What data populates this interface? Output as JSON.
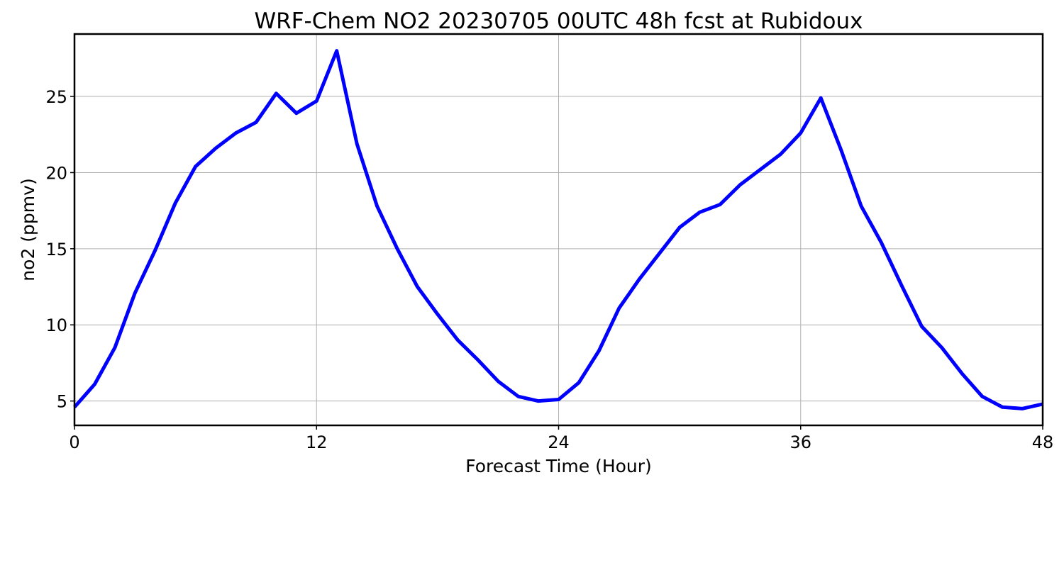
{
  "chart_data": {
    "type": "line",
    "title": "WRF-Chem NO2  20230705 00UTC 48h fcst at Rubidoux",
    "xlabel": "Forecast Time (Hour)",
    "ylabel": "no2  (ppmv)",
    "xlim": [
      0,
      48
    ],
    "ylim": [
      3.4,
      29.1
    ],
    "xticks": [
      0,
      12,
      24,
      36,
      48
    ],
    "yticks": [
      5,
      10,
      15,
      20,
      25
    ],
    "grid": true,
    "series": [
      {
        "color": "#0000ff",
        "x": [
          0,
          1,
          2,
          3,
          4,
          5,
          6,
          7,
          8,
          9,
          10,
          11,
          12,
          13,
          14,
          15,
          16,
          17,
          18,
          19,
          20,
          21,
          22,
          23,
          24,
          25,
          26,
          27,
          28,
          29,
          30,
          31,
          32,
          33,
          34,
          35,
          36,
          37,
          38,
          39,
          40,
          41,
          42,
          43,
          44,
          45,
          46,
          47,
          48
        ],
        "y": [
          4.6,
          6.1,
          8.5,
          12.1,
          14.9,
          18.0,
          20.4,
          21.6,
          22.6,
          23.3,
          25.2,
          23.9,
          24.7,
          28.0,
          21.9,
          17.8,
          15.0,
          12.5,
          10.7,
          9.0,
          7.7,
          6.3,
          5.3,
          5.0,
          5.1,
          6.2,
          8.3,
          11.1,
          13.0,
          14.7,
          16.4,
          17.4,
          17.9,
          19.2,
          20.2,
          21.2,
          22.6,
          24.9,
          21.5,
          17.8,
          15.4,
          12.6,
          9.9,
          8.5,
          6.8,
          5.3,
          4.6,
          4.5,
          4.8
        ]
      }
    ]
  }
}
